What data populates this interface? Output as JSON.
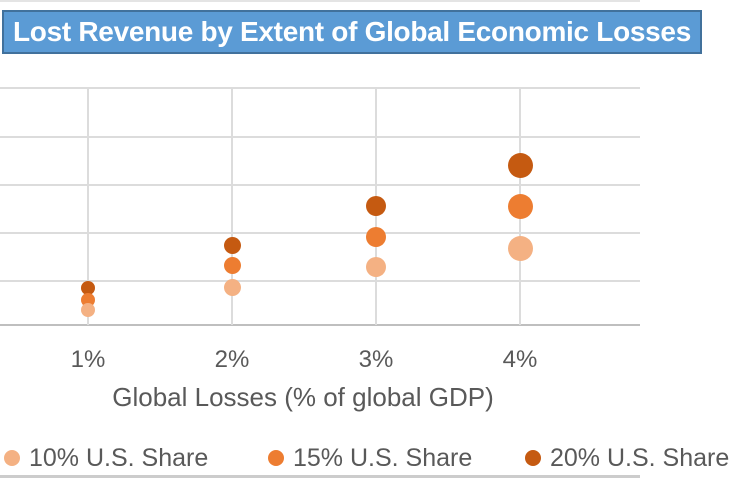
{
  "title": {
    "text": "Lost Revenue by Extent of Global Economic Losses"
  },
  "colors": {
    "title_bar_bg": "#5B9BD5",
    "title_bar_border": "#41719C",
    "title_text": "#FFFFFF",
    "gridline": "#DCDCDC",
    "axis_line": "#BFBFBF",
    "label_text": "#595959",
    "series_10_share": "#F4B183",
    "series_15_share": "#ED7D31",
    "series_20_share": "#C55A11"
  },
  "chart_data": {
    "type": "scatter",
    "title": "Lost Revenue by Extent of Global Economic Losses",
    "xlabel": "Global Losses (% of global GDP)",
    "ylabel": "",
    "x": [
      1,
      2,
      3,
      4
    ],
    "x_tick_labels": [
      "1%",
      "2%",
      "3%",
      "4%"
    ],
    "grid": true,
    "legend_position": "bottom",
    "horizontal_gridlines": 6,
    "y_unit": "horizontal-gridline units above the x-axis (y-axis labels cropped out of screenshot)",
    "marker_diameters_px_by_x": [
      14,
      17,
      20,
      25
    ],
    "series": [
      {
        "name": "10% U.S. Share",
        "color": "#F4B183",
        "values": [
          0.31,
          0.79,
          1.21,
          1.6
        ]
      },
      {
        "name": "15% U.S. Share",
        "color": "#ED7D31",
        "values": [
          0.52,
          1.23,
          1.83,
          2.46
        ]
      },
      {
        "name": "20% U.S. Share",
        "color": "#C55A11",
        "values": [
          0.77,
          1.65,
          2.48,
          3.33
        ]
      }
    ]
  },
  "legend": {
    "items": [
      {
        "label": "10% U.S. Share",
        "color": "#F4B183"
      },
      {
        "label": "15% U.S. Share",
        "color": "#ED7D31"
      },
      {
        "label": "20% U.S. Share",
        "color": "#C55A11"
      }
    ]
  }
}
